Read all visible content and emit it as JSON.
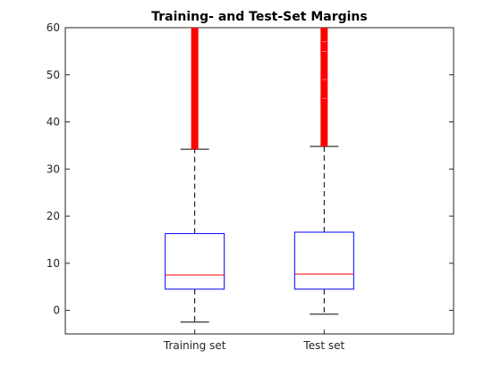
{
  "chart_data": {
    "type": "box",
    "title": "Training- and Test-Set Margins",
    "xlabel": "",
    "ylabel": "",
    "ylim": [
      -5,
      60
    ],
    "yticks": [
      0,
      10,
      20,
      30,
      40,
      50,
      60
    ],
    "grid": false,
    "categories": [
      "Training set",
      "Test set"
    ],
    "boxes": [
      {
        "category": "Training set",
        "whisker_low": -2.5,
        "q1": 4.5,
        "median": 7.5,
        "q3": 16.3,
        "whisker_high": 34.2,
        "outliers_from": 34.2,
        "outliers_to": 60
      },
      {
        "category": "Test set",
        "whisker_low": -0.8,
        "q1": 4.5,
        "median": 7.7,
        "q3": 16.6,
        "whisker_high": 34.8,
        "outliers_from": 34.8,
        "outliers_to": 60
      }
    ],
    "colors": {
      "box": "#0000ff",
      "median": "#ff0000",
      "whisker": "#000000",
      "outlier": "#ff0000",
      "axis": "#262626"
    }
  }
}
